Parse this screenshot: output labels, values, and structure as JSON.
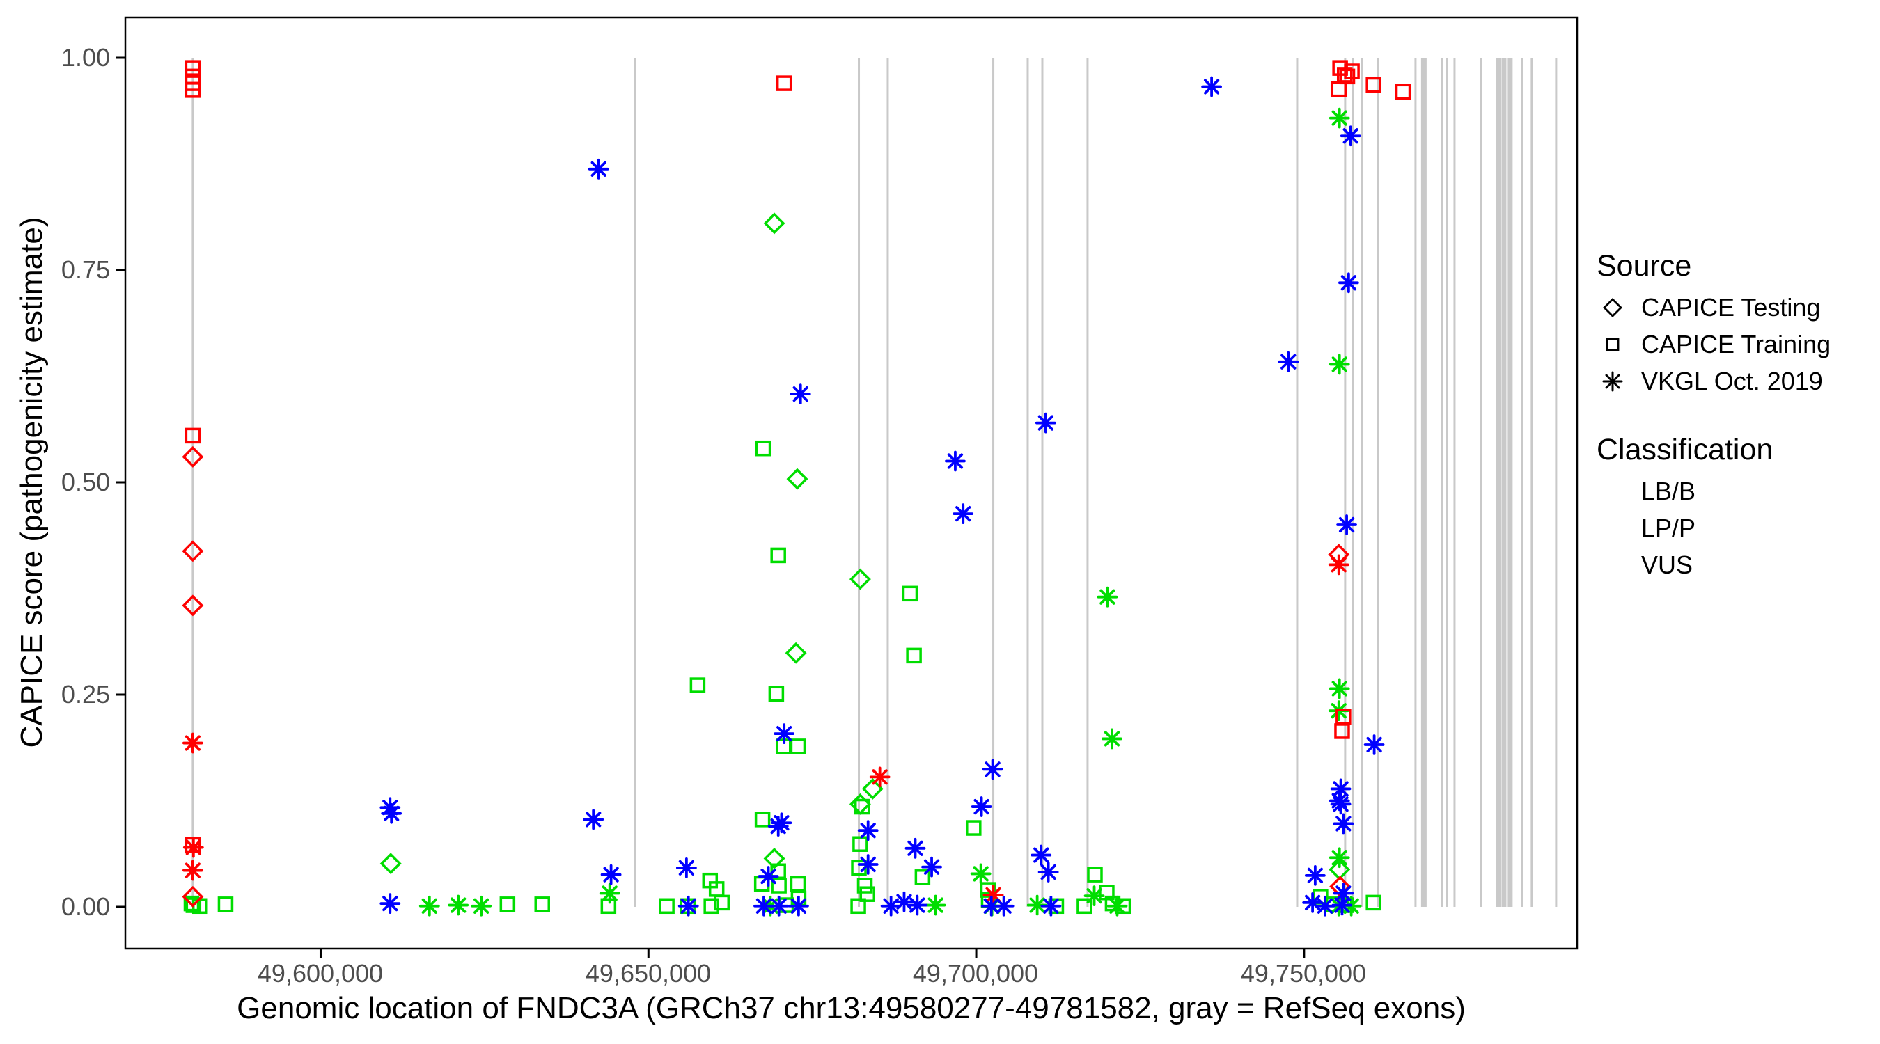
{
  "axes": {
    "x": {
      "title": "Genomic location of FNDC3A (GRCh37 chr13:49580277-49781582, gray = RefSeq exons)"
    },
    "y": {
      "title": "CAPICE score (pathogenicity estimate)"
    }
  },
  "legend": {
    "source": {
      "title": "Source",
      "items": [
        {
          "label": "CAPICE Testing",
          "shape": "diamond"
        },
        {
          "label": "CAPICE Training",
          "shape": "square"
        },
        {
          "label": "VKGL Oct. 2019",
          "shape": "asterisk"
        }
      ]
    },
    "classification": {
      "title": "Classification",
      "items": [
        {
          "label": "LB/B",
          "color": "#00DD00"
        },
        {
          "label": "LP/P",
          "color": "#FF0000"
        },
        {
          "label": "VUS",
          "color": "#0000FF"
        }
      ]
    }
  },
  "chart_data": {
    "type": "scatter",
    "title": "",
    "xlabel": "Genomic location of FNDC3A (GRCh37 chr13:49580277-49781582, gray = RefSeq exons)",
    "ylabel": "CAPICE score (pathogenicity estimate)",
    "x_domain": [
      49570212,
      49791647
    ],
    "y_domain": [
      0,
      1
    ],
    "grid": false,
    "legend_position": "right",
    "x_ticks": [
      {
        "value": 49600000,
        "label": "49,600,000"
      },
      {
        "value": 49650000,
        "label": "49,650,000"
      },
      {
        "value": 49700000,
        "label": "49,700,000"
      },
      {
        "value": 49750000,
        "label": "49,750,000"
      }
    ],
    "y_ticks": [
      {
        "value": 1.0,
        "label": "1.00"
      },
      {
        "value": 0.75,
        "label": "0.75"
      },
      {
        "value": 0.5,
        "label": "0.50"
      },
      {
        "value": 0.25,
        "label": "0.25"
      },
      {
        "value": 0.0,
        "label": "0.00"
      }
    ],
    "exon_color": "#C9C9C9",
    "refseq_exons_bp": [
      [
        49580500,
        3
      ],
      [
        49648000,
        3
      ],
      [
        49682100,
        3
      ],
      [
        49686500,
        3
      ],
      [
        49702600,
        3
      ],
      [
        49707850,
        3
      ],
      [
        49710080,
        3
      ],
      [
        49716980,
        3
      ],
      [
        49748950,
        3
      ],
      [
        49756270,
        3
      ],
      [
        49757440,
        3
      ],
      [
        49758820,
        3
      ],
      [
        49761260,
        3
      ],
      [
        49767000,
        3
      ],
      [
        49768270,
        8
      ],
      [
        49771030,
        3
      ],
      [
        49771780,
        3
      ],
      [
        49772950,
        3
      ],
      [
        49776980,
        3
      ],
      [
        49779640,
        7
      ],
      [
        49780490,
        7
      ],
      [
        49781440,
        7
      ],
      [
        49783250,
        3
      ],
      [
        49784730,
        3
      ],
      [
        49788450,
        3
      ]
    ],
    "source_shapes": {
      "te": "diamond",
      "tr": "square",
      "vk": "asterisk"
    },
    "source_labels": {
      "te": "CAPICE Testing",
      "tr": "CAPICE Training",
      "vk": "VKGL Oct. 2019"
    },
    "series": [
      {
        "name": "LB/B",
        "color": "#00DD00",
        "points": [
          [
            49580300,
            0.004,
            "tr"
          ],
          [
            49580600,
            0.002,
            "tr"
          ],
          [
            49581600,
            0.001,
            "tr"
          ],
          [
            49585500,
            0.003,
            "tr"
          ],
          [
            49610700,
            0.051,
            "te"
          ],
          [
            49616600,
            0.001,
            "vk"
          ],
          [
            49621000,
            0.002,
            "vk"
          ],
          [
            49624500,
            0.001,
            "vk"
          ],
          [
            49628500,
            0.003,
            "tr"
          ],
          [
            49633800,
            0.003,
            "tr"
          ],
          [
            49644100,
            0.016,
            "vk"
          ],
          [
            49643900,
            0.001,
            "tr"
          ],
          [
            49652800,
            0.001,
            "tr"
          ],
          [
            49656000,
            0.001,
            "tr"
          ],
          [
            49657500,
            0.261,
            "tr"
          ],
          [
            49659400,
            0.031,
            "tr"
          ],
          [
            49660400,
            0.021,
            "tr"
          ],
          [
            49659600,
            0.001,
            "tr"
          ],
          [
            49661200,
            0.005,
            "tr"
          ],
          [
            49669200,
            0.805,
            "te"
          ],
          [
            49667500,
            0.54,
            "tr"
          ],
          [
            49672700,
            0.504,
            "te"
          ],
          [
            49669800,
            0.414,
            "tr"
          ],
          [
            49672500,
            0.299,
            "te"
          ],
          [
            49669500,
            0.251,
            "tr"
          ],
          [
            49670600,
            0.189,
            "tr"
          ],
          [
            49672800,
            0.189,
            "tr"
          ],
          [
            49667400,
            0.103,
            "tr"
          ],
          [
            49669200,
            0.057,
            "te"
          ],
          [
            49669800,
            0.042,
            "tr"
          ],
          [
            49667300,
            0.027,
            "tr"
          ],
          [
            49669900,
            0.025,
            "tr"
          ],
          [
            49672800,
            0.027,
            "tr"
          ],
          [
            49672900,
            0.01,
            "tr"
          ],
          [
            49671000,
            0.002,
            "tr"
          ],
          [
            49668600,
            0.001,
            "vk"
          ],
          [
            49682300,
            0.386,
            "te"
          ],
          [
            49689900,
            0.369,
            "tr"
          ],
          [
            49690500,
            0.296,
            "tr"
          ],
          [
            49684200,
            0.139,
            "te"
          ],
          [
            49682300,
            0.121,
            "te"
          ],
          [
            49682600,
            0.118,
            "tr"
          ],
          [
            49682300,
            0.074,
            "tr"
          ],
          [
            49682100,
            0.046,
            "tr"
          ],
          [
            49691800,
            0.035,
            "tr"
          ],
          [
            49683000,
            0.025,
            "tr"
          ],
          [
            49683400,
            0.015,
            "tr"
          ],
          [
            49682000,
            0.001,
            "tr"
          ],
          [
            49693800,
            0.002,
            "vk"
          ],
          [
            49699600,
            0.093,
            "tr"
          ],
          [
            49700700,
            0.039,
            "vk"
          ],
          [
            49701800,
            0.02,
            "tr"
          ],
          [
            49701900,
            0.008,
            "tr"
          ],
          [
            49702400,
            0.001,
            "vk"
          ],
          [
            49709300,
            0.002,
            "vk"
          ],
          [
            49712200,
            0.001,
            "tr"
          ],
          [
            49720000,
            0.365,
            "vk"
          ],
          [
            49720700,
            0.198,
            "vk"
          ],
          [
            49718100,
            0.038,
            "tr"
          ],
          [
            49718000,
            0.013,
            "vk"
          ],
          [
            49716500,
            0.001,
            "tr"
          ],
          [
            49719900,
            0.017,
            "tr"
          ],
          [
            49720800,
            0.004,
            "tr"
          ],
          [
            49722400,
            0.001,
            "tr"
          ],
          [
            49721500,
            0.001,
            "vk"
          ],
          [
            49755400,
            0.929,
            "vk"
          ],
          [
            49755400,
            0.639,
            "vk"
          ],
          [
            49755400,
            0.257,
            "vk"
          ],
          [
            49755300,
            0.231,
            "vk"
          ],
          [
            49755400,
            0.058,
            "vk"
          ],
          [
            49755400,
            0.044,
            "te"
          ],
          [
            49752500,
            0.012,
            "tr"
          ],
          [
            49754200,
            0.003,
            "tr"
          ],
          [
            49755300,
            0.001,
            "vk"
          ],
          [
            49756400,
            0.002,
            "tr"
          ],
          [
            49757200,
            0.001,
            "vk"
          ],
          [
            49760600,
            0.005,
            "tr"
          ]
        ]
      },
      {
        "name": "LP/P",
        "color": "#FF0000",
        "points": [
          [
            49580500,
            0.988,
            "tr"
          ],
          [
            49580500,
            0.978,
            "tr"
          ],
          [
            49580500,
            0.97,
            "tr"
          ],
          [
            49580500,
            0.962,
            "tr"
          ],
          [
            49580500,
            0.555,
            "tr"
          ],
          [
            49580500,
            0.53,
            "te"
          ],
          [
            49580500,
            0.419,
            "te"
          ],
          [
            49580500,
            0.355,
            "te"
          ],
          [
            49580500,
            0.193,
            "vk"
          ],
          [
            49580500,
            0.073,
            "tr"
          ],
          [
            49580600,
            0.07,
            "vk"
          ],
          [
            49580500,
            0.043,
            "vk"
          ],
          [
            49580500,
            0.012,
            "te"
          ],
          [
            49670700,
            0.97,
            "tr"
          ],
          [
            49685300,
            0.153,
            "vk"
          ],
          [
            49702600,
            0.014,
            "vk"
          ],
          [
            49755500,
            0.988,
            "tr"
          ],
          [
            49757300,
            0.984,
            "tr"
          ],
          [
            49756200,
            0.98,
            "tr"
          ],
          [
            49756600,
            0.978,
            "tr"
          ],
          [
            49755300,
            0.963,
            "tr"
          ],
          [
            49760600,
            0.968,
            "tr"
          ],
          [
            49765100,
            0.96,
            "tr"
          ],
          [
            49755300,
            0.415,
            "te"
          ],
          [
            49755300,
            0.403,
            "vk"
          ],
          [
            49756000,
            0.224,
            "tr"
          ],
          [
            49755800,
            0.207,
            "tr"
          ],
          [
            49755500,
            0.024,
            "te"
          ]
        ]
      },
      {
        "name": "VUS",
        "color": "#0000FF",
        "points": [
          [
            49610600,
            0.117,
            "vk"
          ],
          [
            49610800,
            0.11,
            "vk"
          ],
          [
            49610600,
            0.004,
            "vk"
          ],
          [
            49642400,
            0.869,
            "vk"
          ],
          [
            49641600,
            0.103,
            "vk"
          ],
          [
            49644300,
            0.038,
            "vk"
          ],
          [
            49655800,
            0.046,
            "vk"
          ],
          [
            49656100,
            0.001,
            "vk"
          ],
          [
            49673200,
            0.604,
            "vk"
          ],
          [
            49670700,
            0.204,
            "vk"
          ],
          [
            49670300,
            0.099,
            "vk"
          ],
          [
            49669800,
            0.095,
            "vk"
          ],
          [
            49668300,
            0.036,
            "vk"
          ],
          [
            49667600,
            0.001,
            "vk"
          ],
          [
            49669900,
            0.001,
            "vk"
          ],
          [
            49672900,
            0.001,
            "vk"
          ],
          [
            49683500,
            0.09,
            "vk"
          ],
          [
            49690700,
            0.069,
            "vk"
          ],
          [
            49683500,
            0.05,
            "vk"
          ],
          [
            49693200,
            0.047,
            "vk"
          ],
          [
            49687000,
            0.001,
            "vk"
          ],
          [
            49689000,
            0.006,
            "vk"
          ],
          [
            49691000,
            0.002,
            "vk"
          ],
          [
            49696800,
            0.525,
            "vk"
          ],
          [
            49698000,
            0.463,
            "vk"
          ],
          [
            49702500,
            0.162,
            "vk"
          ],
          [
            49700800,
            0.118,
            "vk"
          ],
          [
            49702300,
            0.001,
            "vk"
          ],
          [
            49704200,
            0.001,
            "vk"
          ],
          [
            49710600,
            0.57,
            "vk"
          ],
          [
            49709900,
            0.061,
            "vk"
          ],
          [
            49711000,
            0.041,
            "vk"
          ],
          [
            49711400,
            0.001,
            "vk"
          ],
          [
            49735900,
            0.966,
            "vk"
          ],
          [
            49747600,
            0.642,
            "vk"
          ],
          [
            49757100,
            0.908,
            "vk"
          ],
          [
            49756800,
            0.735,
            "vk"
          ],
          [
            49756500,
            0.45,
            "vk"
          ],
          [
            49760700,
            0.191,
            "vk"
          ],
          [
            49755600,
            0.139,
            "vk"
          ],
          [
            49755400,
            0.125,
            "vk"
          ],
          [
            49755600,
            0.121,
            "vk"
          ],
          [
            49756000,
            0.098,
            "vk"
          ],
          [
            49751700,
            0.037,
            "vk"
          ],
          [
            49756000,
            0.016,
            "vk"
          ],
          [
            49751300,
            0.005,
            "vk"
          ],
          [
            49753200,
            0.001,
            "vk"
          ],
          [
            49755800,
            0.002,
            "vk"
          ]
        ]
      }
    ]
  }
}
